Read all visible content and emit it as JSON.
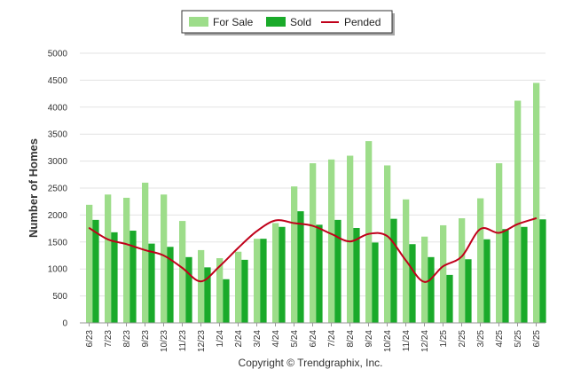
{
  "chart_data": {
    "type": "bar",
    "categories": [
      "6/23",
      "7/23",
      "8/23",
      "9/23",
      "10/23",
      "11/23",
      "12/23",
      "1/24",
      "2/24",
      "3/24",
      "4/24",
      "5/24",
      "6/24",
      "7/24",
      "8/24",
      "9/24",
      "10/24",
      "11/24",
      "12/24",
      "1/25",
      "2/25",
      "3/25",
      "4/25",
      "5/25",
      "6/25"
    ],
    "series": [
      {
        "name": "For Sale",
        "kind": "bar",
        "color": "#9ddd8a",
        "values": [
          2190,
          2380,
          2320,
          2600,
          2380,
          1890,
          1350,
          1200,
          1320,
          1560,
          1850,
          2530,
          2960,
          3030,
          3100,
          3370,
          2920,
          2290,
          1600,
          1810,
          1940,
          2310,
          2960,
          4120,
          4450
        ]
      },
      {
        "name": "Sold",
        "kind": "bar",
        "color": "#1aaa2a",
        "values": [
          1910,
          1680,
          1710,
          1470,
          1410,
          1220,
          1030,
          810,
          1170,
          1560,
          1780,
          2070,
          1820,
          1910,
          1760,
          1490,
          1930,
          1460,
          1220,
          890,
          1180,
          1550,
          1740,
          1780,
          1920
        ]
      },
      {
        "name": "Pended",
        "kind": "line",
        "color": "#c0001a",
        "values": [
          1760,
          1550,
          1460,
          1350,
          1250,
          1020,
          770,
          1050,
          1390,
          1700,
          1900,
          1850,
          1800,
          1650,
          1510,
          1650,
          1610,
          1160,
          760,
          1050,
          1230,
          1740,
          1670,
          1830,
          1940
        ]
      }
    ],
    "ylabel": "Number of Homes",
    "xlabel": "",
    "ylim": [
      0,
      5000
    ],
    "yticks": [
      0,
      500,
      1000,
      1500,
      2000,
      2500,
      3000,
      3500,
      4000,
      4500,
      5000
    ],
    "grid": true,
    "legend": {
      "placement": "top-center",
      "entries": [
        "For Sale",
        "Sold",
        "Pended"
      ]
    }
  },
  "footer": {
    "copyright": "Copyright © Trendgraphix, Inc."
  }
}
